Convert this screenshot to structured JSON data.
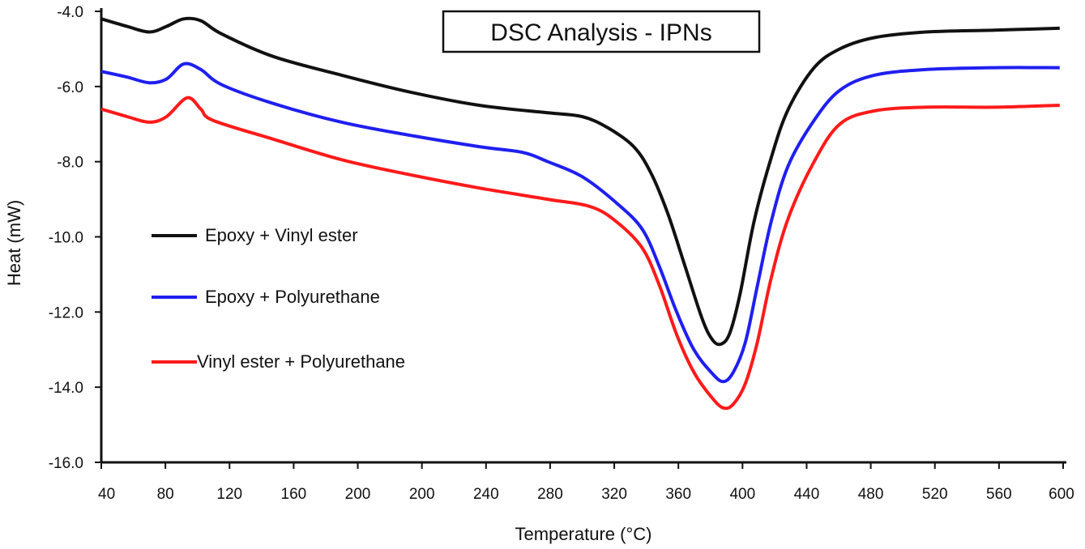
{
  "chart_data": {
    "type": "line",
    "title": "DSC Analysis - IPNs",
    "xlabel": "Temperature (°C)",
    "ylabel": "Heat (mW)",
    "x_tick_labels": [
      "40",
      "80",
      "120",
      "160",
      "200",
      "200",
      "240",
      "280",
      "320",
      "360",
      "400",
      "440",
      "480",
      "520",
      "560",
      "600"
    ],
    "y_tick_labels": [
      "-4.0",
      "-6.0",
      "-8.0",
      "-10.0",
      "-12.0",
      "-14.0",
      "-16.0"
    ],
    "ylim": [
      -16,
      -4
    ],
    "xlim": [
      40,
      600
    ],
    "grid": false,
    "legend_position": "left",
    "series": [
      {
        "name": "Epoxy + Vinyl ester",
        "color": "#111111",
        "points": [
          [
            40,
            -4.2
          ],
          [
            55,
            -4.4
          ],
          [
            68,
            -4.55
          ],
          [
            78,
            -4.4
          ],
          [
            88,
            -4.2
          ],
          [
            98,
            -4.25
          ],
          [
            110,
            -4.6
          ],
          [
            140,
            -5.2
          ],
          [
            180,
            -5.7
          ],
          [
            220,
            -6.15
          ],
          [
            260,
            -6.5
          ],
          [
            300,
            -6.7
          ],
          [
            320,
            -6.8
          ],
          [
            335,
            -7.1
          ],
          [
            350,
            -7.6
          ],
          [
            360,
            -8.3
          ],
          [
            370,
            -9.4
          ],
          [
            380,
            -10.8
          ],
          [
            390,
            -12.2
          ],
          [
            396,
            -12.75
          ],
          [
            401,
            -12.85
          ],
          [
            406,
            -12.55
          ],
          [
            412,
            -11.5
          ],
          [
            420,
            -9.6
          ],
          [
            430,
            -7.9
          ],
          [
            440,
            -6.6
          ],
          [
            455,
            -5.5
          ],
          [
            470,
            -5.0
          ],
          [
            490,
            -4.7
          ],
          [
            520,
            -4.55
          ],
          [
            560,
            -4.5
          ],
          [
            598,
            -4.45
          ]
        ]
      },
      {
        "name": "Epoxy + Polyurethane",
        "color": "#1f1ff0",
        "points": [
          [
            40,
            -5.6
          ],
          [
            55,
            -5.75
          ],
          [
            68,
            -5.9
          ],
          [
            78,
            -5.8
          ],
          [
            88,
            -5.4
          ],
          [
            98,
            -5.55
          ],
          [
            110,
            -5.95
          ],
          [
            140,
            -6.45
          ],
          [
            180,
            -6.95
          ],
          [
            220,
            -7.3
          ],
          [
            260,
            -7.6
          ],
          [
            285,
            -7.75
          ],
          [
            300,
            -8.0
          ],
          [
            320,
            -8.4
          ],
          [
            340,
            -9.1
          ],
          [
            355,
            -9.8
          ],
          [
            365,
            -10.8
          ],
          [
            375,
            -12.0
          ],
          [
            385,
            -13.0
          ],
          [
            395,
            -13.6
          ],
          [
            402,
            -13.85
          ],
          [
            408,
            -13.6
          ],
          [
            415,
            -12.8
          ],
          [
            422,
            -11.3
          ],
          [
            430,
            -9.6
          ],
          [
            440,
            -8.1
          ],
          [
            455,
            -6.9
          ],
          [
            470,
            -6.1
          ],
          [
            490,
            -5.7
          ],
          [
            520,
            -5.55
          ],
          [
            560,
            -5.5
          ],
          [
            598,
            -5.5
          ]
        ]
      },
      {
        "name": "Vinyl ester + Polyurethane",
        "color": "#ff1a1a",
        "points": [
          [
            40,
            -6.6
          ],
          [
            55,
            -6.8
          ],
          [
            68,
            -6.95
          ],
          [
            78,
            -6.8
          ],
          [
            90,
            -6.3
          ],
          [
            98,
            -6.6
          ],
          [
            105,
            -6.9
          ],
          [
            140,
            -7.4
          ],
          [
            180,
            -7.95
          ],
          [
            220,
            -8.35
          ],
          [
            260,
            -8.7
          ],
          [
            300,
            -9.0
          ],
          [
            325,
            -9.2
          ],
          [
            340,
            -9.6
          ],
          [
            355,
            -10.3
          ],
          [
            365,
            -11.3
          ],
          [
            375,
            -12.6
          ],
          [
            385,
            -13.6
          ],
          [
            395,
            -14.25
          ],
          [
            402,
            -14.55
          ],
          [
            408,
            -14.45
          ],
          [
            415,
            -13.9
          ],
          [
            422,
            -12.8
          ],
          [
            430,
            -11.1
          ],
          [
            440,
            -9.5
          ],
          [
            455,
            -8.0
          ],
          [
            470,
            -7.0
          ],
          [
            490,
            -6.65
          ],
          [
            520,
            -6.55
          ],
          [
            560,
            -6.55
          ],
          [
            598,
            -6.5
          ]
        ]
      }
    ]
  }
}
